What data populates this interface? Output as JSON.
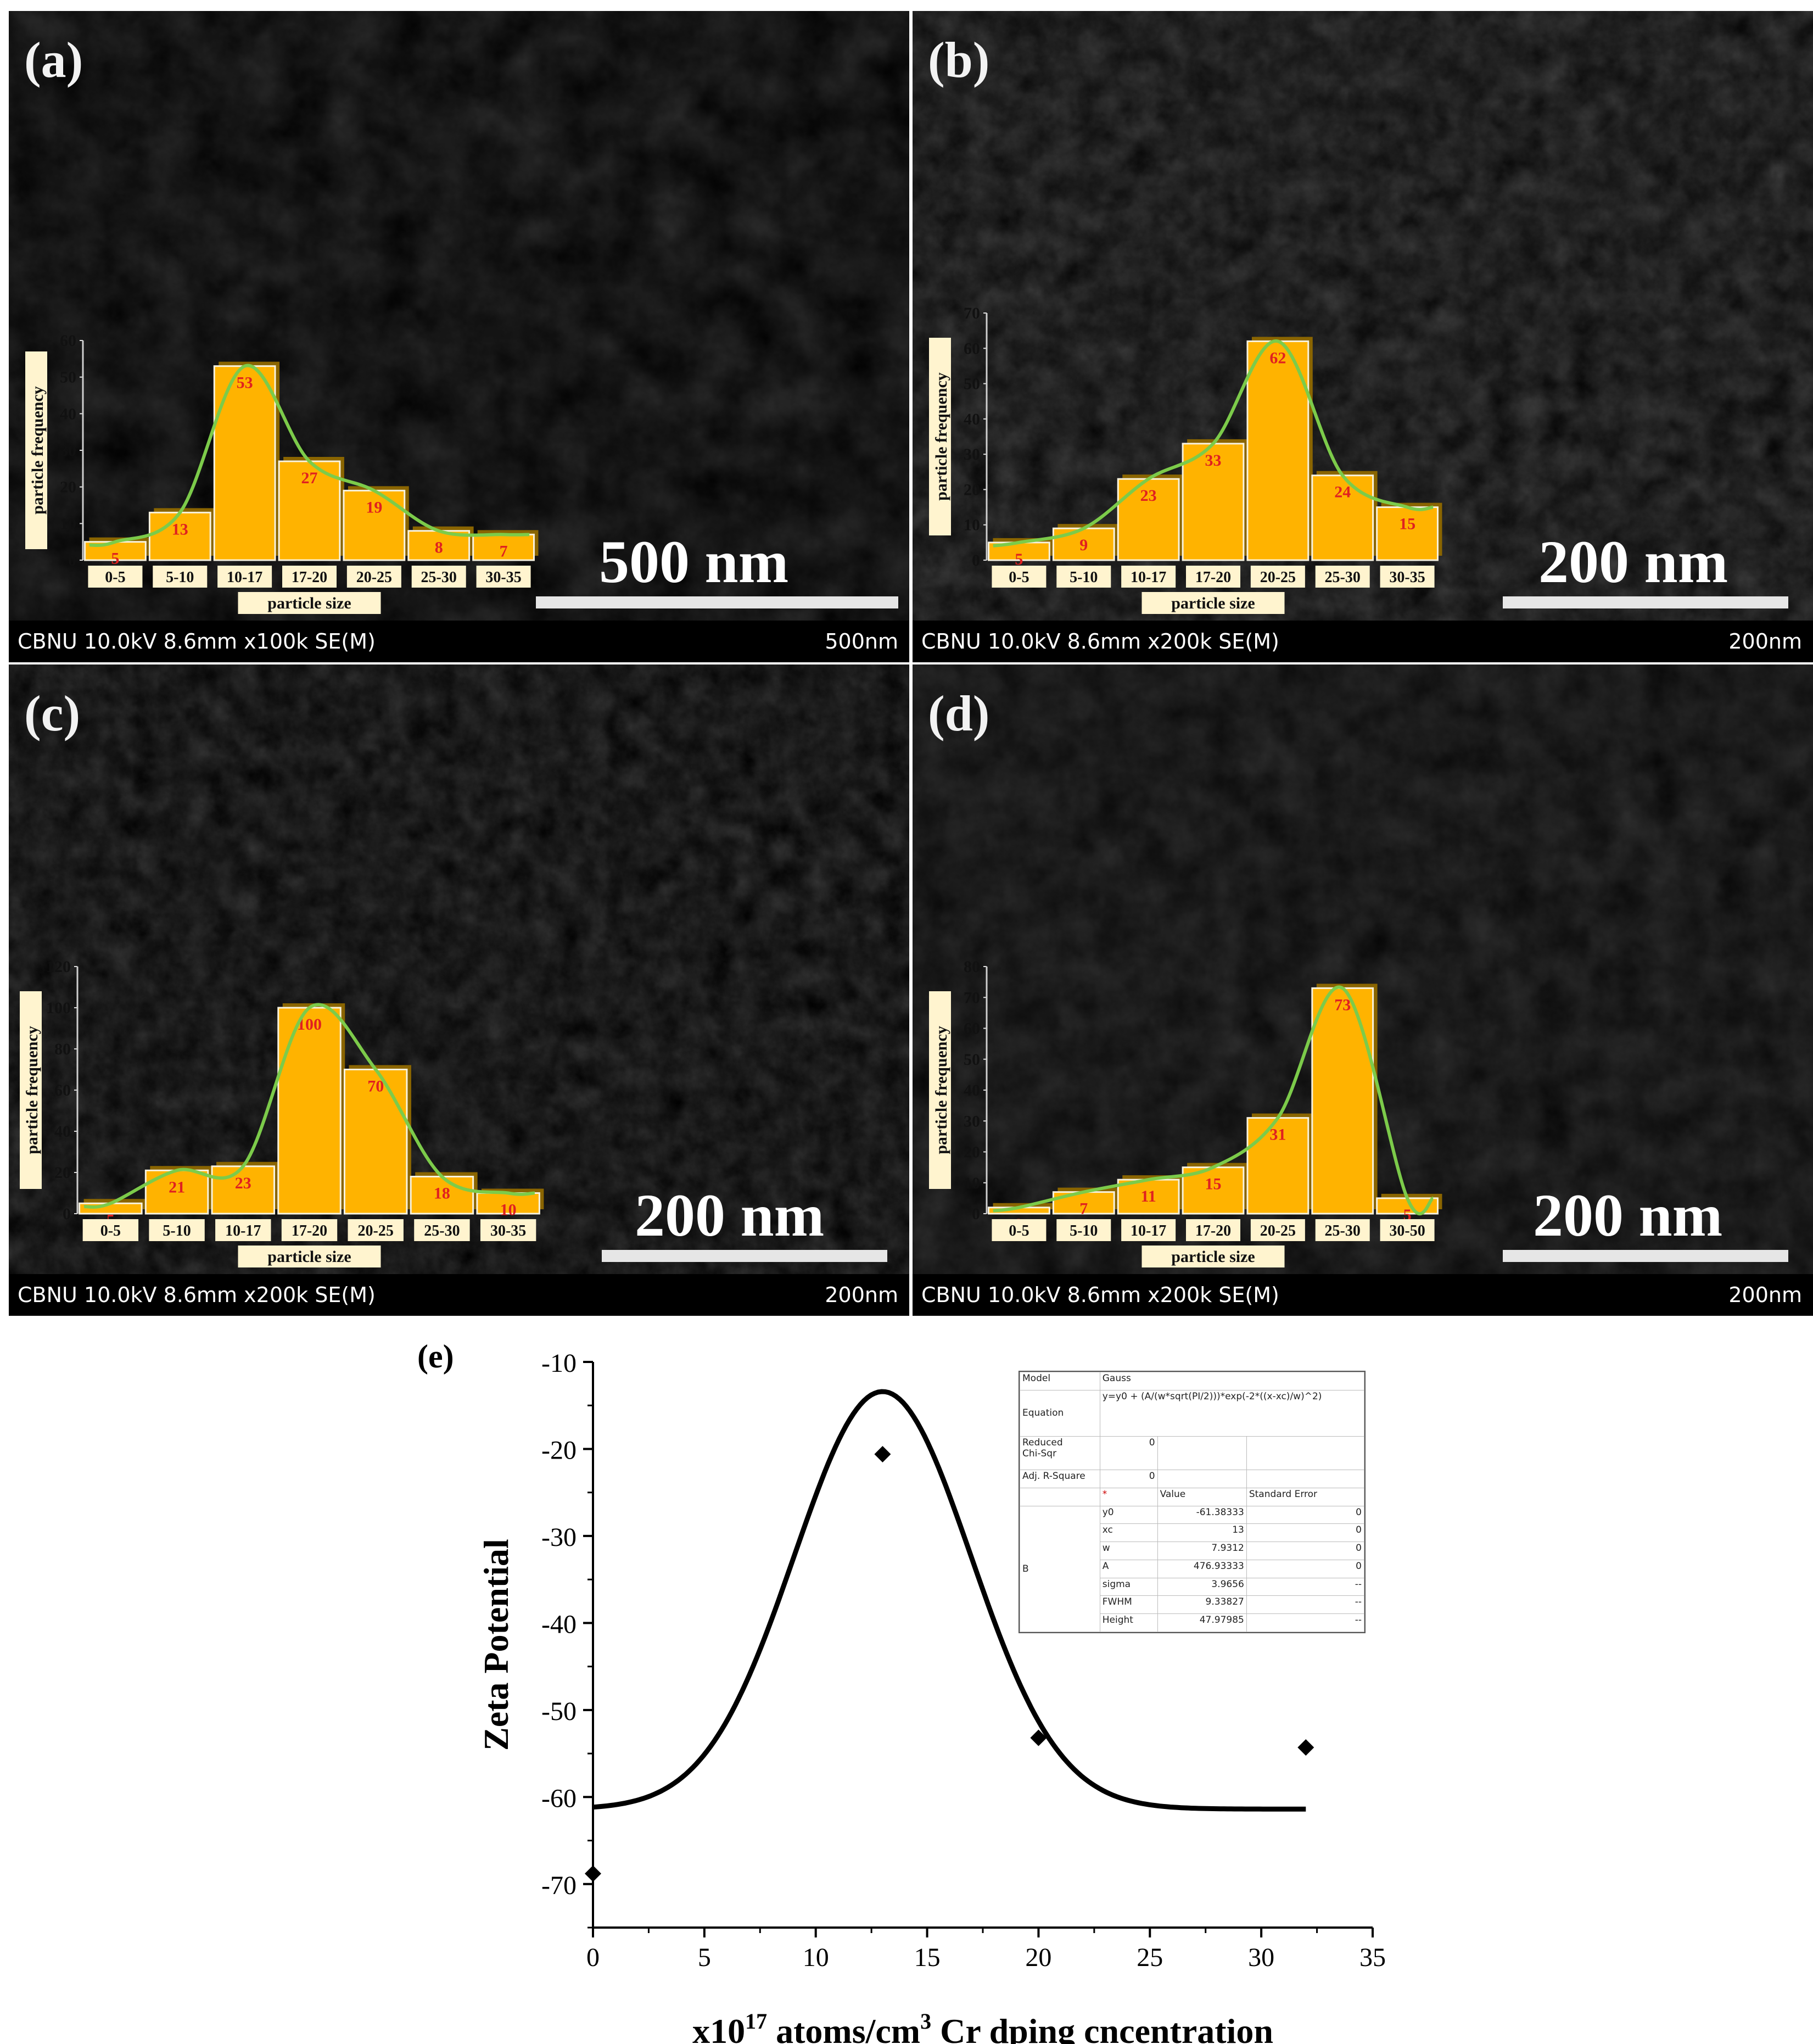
{
  "panels": [
    {
      "letter": "(a)",
      "scale_label": "500 nm",
      "info": "CBNU 10.0kV 8.6mm x100k SE(M)",
      "info_scale": "500nm"
    },
    {
      "letter": "(b)",
      "scale_label": "200 nm",
      "info": "CBNU 10.0kV 8.6mm x200k SE(M)",
      "info_scale": "200nm"
    },
    {
      "letter": "(c)",
      "scale_label": "200 nm",
      "info": "CBNU 10.0kV 8.6mm x200k SE(M)",
      "info_scale": "200nm"
    },
    {
      "letter": "(d)",
      "scale_label": "200 nm",
      "info": "CBNU 10.0kV 8.6mm x200k SE(M)",
      "info_scale": "200nm"
    }
  ],
  "chart_data": [
    {
      "type": "bar",
      "panel": "(a)",
      "categories": [
        "0-5",
        "5-10",
        "10-17",
        "17-20",
        "20-25",
        "25-30",
        "30-35"
      ],
      "values": [
        5,
        13,
        53,
        27,
        19,
        8,
        7
      ],
      "xlabel": "particle size",
      "ylabel": "particle frequency",
      "ylim": [
        0,
        60
      ],
      "yticks": [
        0,
        10,
        20,
        30,
        40,
        50,
        60
      ],
      "bar_color": "#FFB300",
      "label_color": "#E02020",
      "fit_color": "#7CCB4A"
    },
    {
      "type": "bar",
      "panel": "(b)",
      "categories": [
        "0-5",
        "5-10",
        "10-17",
        "17-20",
        "20-25",
        "25-30",
        "30-35"
      ],
      "values": [
        5,
        9,
        23,
        33,
        62,
        24,
        15
      ],
      "xlabel": "particle size",
      "ylabel": "particle frequency",
      "ylim": [
        0,
        70
      ],
      "yticks": [
        0,
        10,
        20,
        30,
        40,
        50,
        60,
        70
      ],
      "bar_color": "#FFB300",
      "label_color": "#E02020",
      "fit_color": "#7CCB4A"
    },
    {
      "type": "bar",
      "panel": "(c)",
      "categories": [
        "0-5",
        "5-10",
        "10-17",
        "17-20",
        "20-25",
        "25-30",
        "30-35"
      ],
      "values": [
        5,
        21,
        23,
        100,
        70,
        18,
        10
      ],
      "xlabel": "particle size",
      "ylabel": "particle frequency",
      "ylim": [
        0,
        120
      ],
      "yticks": [
        0,
        20,
        40,
        60,
        80,
        100,
        120
      ],
      "bar_color": "#FFB300",
      "label_color": "#E02020",
      "fit_color": "#7CCB4A"
    },
    {
      "type": "bar",
      "panel": "(d)",
      "categories": [
        "0-5",
        "5-10",
        "10-17",
        "17-20",
        "20-25",
        "25-30",
        "30-50"
      ],
      "values": [
        2,
        7,
        11,
        15,
        31,
        73,
        5
      ],
      "xlabel": "particle size",
      "ylabel": "particle frequency",
      "ylim": [
        0,
        80
      ],
      "yticks": [
        0,
        10,
        20,
        30,
        40,
        50,
        60,
        70,
        80
      ],
      "bar_color": "#FFB300",
      "label_color": "#E02020",
      "fit_color": "#7CCB4A"
    },
    {
      "type": "scatter",
      "panel": "(e)",
      "x": [
        0,
        13,
        20,
        32
      ],
      "y": [
        -68.8,
        -20.6,
        -53.2,
        -54.3
      ],
      "xlabel_prefix": "x10",
      "xlabel_sup1": "17",
      "xlabel_mid": " atoms/cm",
      "xlabel_sup2": "3",
      "xlabel_suffix": " Cr dping cncentration",
      "ylabel": "Zeta Potential",
      "xlim": [
        0,
        35
      ],
      "ylim": [
        -75,
        -10
      ],
      "xticks": [
        0,
        5,
        10,
        15,
        20,
        25,
        30,
        35
      ],
      "yticks": [
        -10,
        -20,
        -30,
        -40,
        -50,
        -60,
        -70
      ],
      "fit": {
        "model": "Gauss",
        "y0": -61.38333,
        "xc": 13,
        "w": 7.9312,
        "A": 476.93333,
        "x_range": [
          0,
          32
        ]
      }
    }
  ],
  "fit_table": {
    "model_label": "Model",
    "model_value": "Gauss",
    "equation_label": "Equation",
    "equation_value": "y=y0 + (A/(w*sqrt(PI/2)))*exp(-2*((x-xc)/w)^2)",
    "chisqr_label_1": "Reduced",
    "chisqr_label_2": "Chi-Sqr",
    "chisqr_value": "0",
    "r2_label": "Adj. R-Square",
    "r2_value": "0",
    "header_star": "*",
    "header_value": "Value",
    "header_error": "Standard Error",
    "group": "B",
    "rows": [
      {
        "name": "y0",
        "value": "-61.38333",
        "error": "0"
      },
      {
        "name": "xc",
        "value": "13",
        "error": "0"
      },
      {
        "name": "w",
        "value": "7.9312",
        "error": "0"
      },
      {
        "name": "A",
        "value": "476.93333",
        "error": "0"
      },
      {
        "name": "sigma",
        "value": "3.9656",
        "error": "--"
      },
      {
        "name": "FWHM",
        "value": "9.33827",
        "error": "--"
      },
      {
        "name": "Height",
        "value": "47.97985",
        "error": "--"
      }
    ]
  },
  "panel_e_letter": "(e)"
}
